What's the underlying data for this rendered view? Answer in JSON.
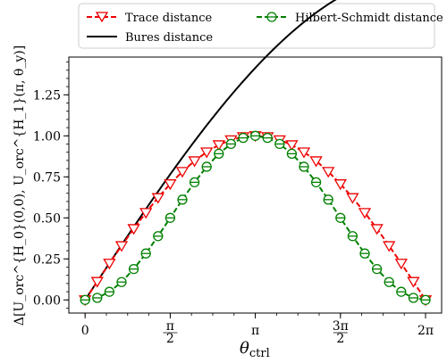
{
  "chart_data": {
    "type": "line",
    "xlabel": "θ",
    "xlabel_sub": "ctrl",
    "ylabel": "Δ[U_orc^{H_0}(0,0), U_orc^{H_1}(π, θ_y)]",
    "xlim": [
      -0.3,
      6.58
    ],
    "ylim": [
      -0.08,
      1.48
    ],
    "x_ticks": [
      {
        "value": 0,
        "label": "0"
      },
      {
        "value": 1.5708,
        "label": "π/2"
      },
      {
        "value": 3.1416,
        "label": "π"
      },
      {
        "value": 4.7124,
        "label": "3π/2"
      },
      {
        "value": 6.2832,
        "label": "2π"
      }
    ],
    "y_ticks": [
      {
        "value": 0.0,
        "label": "0.00"
      },
      {
        "value": 0.25,
        "label": "0.25"
      },
      {
        "value": 0.5,
        "label": "0.50"
      },
      {
        "value": 0.75,
        "label": "0.75"
      },
      {
        "value": 1.0,
        "label": "1.00"
      },
      {
        "value": 1.25,
        "label": "1.25"
      }
    ],
    "legend_position": "top (outside plot)",
    "grid": false,
    "series": [
      {
        "name": "Trace distance",
        "color": "#ee0000",
        "style": "dashed",
        "marker": "triangle-down-open",
        "x": [
          0,
          0.2244,
          0.4488,
          0.6732,
          0.8976,
          1.122,
          1.3464,
          1.5708,
          1.7952,
          2.0196,
          2.244,
          2.4684,
          2.6928,
          2.9172,
          3.1416,
          3.366,
          3.5904,
          3.8148,
          4.0392,
          4.2636,
          4.488,
          4.7124,
          4.9368,
          5.1612,
          5.3856,
          5.61,
          5.8344,
          6.0588,
          6.2832
        ],
        "y": [
          0.0,
          0.112,
          0.223,
          0.33,
          0.434,
          0.532,
          0.623,
          0.707,
          0.782,
          0.847,
          0.901,
          0.945,
          0.975,
          0.994,
          1.0,
          0.994,
          0.975,
          0.945,
          0.901,
          0.847,
          0.782,
          0.707,
          0.623,
          0.532,
          0.434,
          0.33,
          0.223,
          0.112,
          0.0
        ]
      },
      {
        "name": "Hilbert-Schmidt distance",
        "color": "#008000",
        "style": "dashed",
        "marker": "circle-open-bar",
        "x": [
          0,
          0.2244,
          0.4488,
          0.6732,
          0.8976,
          1.122,
          1.3464,
          1.5708,
          1.7952,
          2.0196,
          2.244,
          2.4684,
          2.6928,
          2.9172,
          3.1416,
          3.366,
          3.5904,
          3.8148,
          4.0392,
          4.2636,
          4.488,
          4.7124,
          4.9368,
          5.1612,
          5.3856,
          5.61,
          5.8344,
          6.0588,
          6.2832
        ],
        "y": [
          0.0,
          0.0125,
          0.0495,
          0.109,
          0.1883,
          0.2831,
          0.3887,
          0.5,
          0.6113,
          0.7169,
          0.8117,
          0.891,
          0.9505,
          0.9875,
          1.0,
          0.9875,
          0.9505,
          0.891,
          0.8117,
          0.7169,
          0.6113,
          0.5,
          0.3887,
          0.2831,
          0.1883,
          0.109,
          0.0495,
          0.0125,
          0.0
        ]
      },
      {
        "name": "Bures distance",
        "color": "#000000",
        "style": "solid",
        "marker": "none",
        "formula": "y = 2 sin(x/4)"
      }
    ]
  }
}
